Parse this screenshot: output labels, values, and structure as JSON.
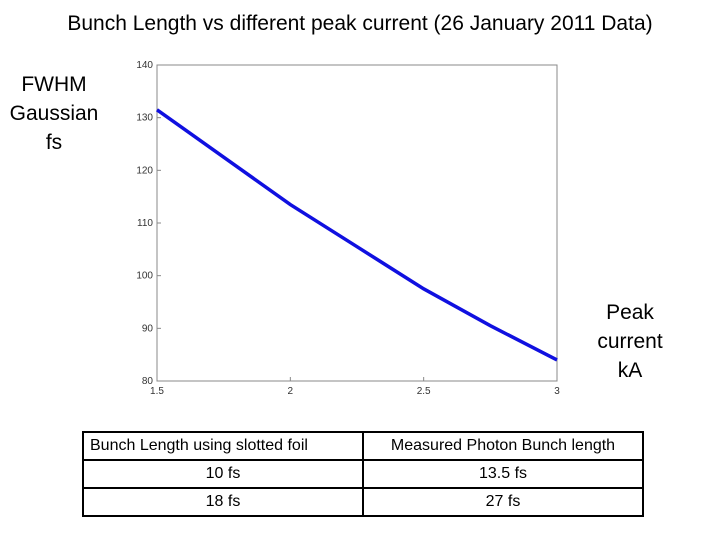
{
  "title": "Bunch Length vs different peak current (26 January 2011 Data)",
  "chart_data": {
    "type": "line",
    "ylabel": "FWHM Gaussian fs",
    "xlabel": "Peak current kA",
    "x": [
      1.5,
      1.75,
      2,
      2.25,
      2.5,
      2.75,
      3
    ],
    "series": [
      {
        "name": "Bunch length",
        "color": "#1010e0",
        "values": [
          131.5,
          122.5,
          113.5,
          105.5,
          97.5,
          90.5,
          84
        ]
      }
    ],
    "xlim": [
      1.5,
      3
    ],
    "ylim": [
      80,
      140
    ],
    "xticks": [
      1.5,
      2,
      2.5,
      3
    ],
    "yticks": [
      80,
      90,
      100,
      110,
      120,
      130,
      140
    ]
  },
  "table": {
    "header": [
      "Bunch Length using slotted foil",
      "Measured Photon Bunch length"
    ],
    "rows": [
      [
        "10 fs",
        "13.5 fs"
      ],
      [
        "18 fs",
        "27 fs"
      ]
    ]
  }
}
